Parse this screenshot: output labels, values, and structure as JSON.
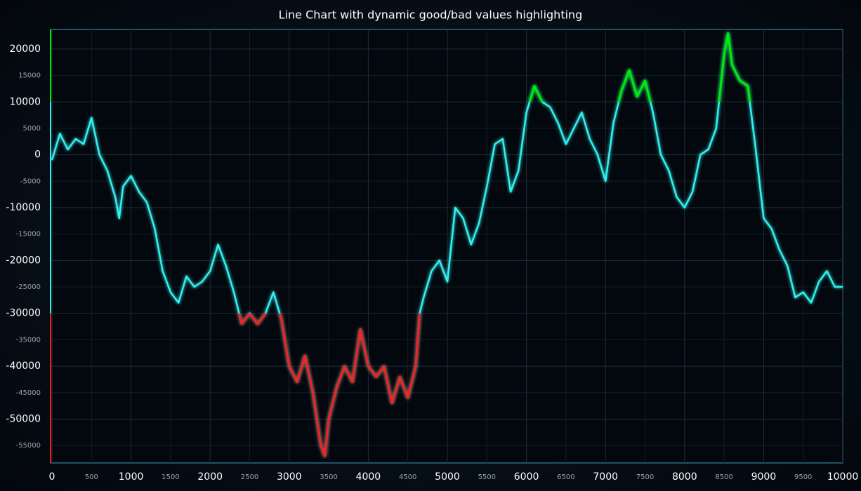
{
  "chart_data": {
    "type": "line",
    "title": "Line Chart with dynamic good/bad values highlighting",
    "x": [
      0,
      100,
      200,
      300,
      400,
      500,
      600,
      700,
      800,
      850,
      900,
      1000,
      1100,
      1200,
      1300,
      1400,
      1500,
      1600,
      1700,
      1800,
      1900,
      2000,
      2100,
      2200,
      2300,
      2400,
      2500,
      2600,
      2700,
      2800,
      2900,
      3000,
      3100,
      3200,
      3300,
      3400,
      3450,
      3500,
      3600,
      3700,
      3800,
      3900,
      4000,
      4100,
      4200,
      4300,
      4400,
      4500,
      4600,
      4650,
      4700,
      4800,
      4900,
      5000,
      5100,
      5200,
      5300,
      5400,
      5500,
      5600,
      5700,
      5800,
      5900,
      6000,
      6100,
      6200,
      6300,
      6400,
      6500,
      6600,
      6700,
      6800,
      6900,
      7000,
      7100,
      7200,
      7300,
      7400,
      7500,
      7600,
      7700,
      7800,
      7900,
      8000,
      8100,
      8200,
      8300,
      8400,
      8500,
      8550,
      8600,
      8700,
      8800,
      8900,
      9000,
      9100,
      9200,
      9300,
      9400,
      9500,
      9600,
      9700,
      9800,
      9900,
      10000
    ],
    "values": [
      -1000,
      4000,
      1000,
      3000,
      2000,
      7000,
      0,
      -3000,
      -8000,
      -12000,
      -6000,
      -4000,
      -7000,
      -9000,
      -14000,
      -22000,
      -26000,
      -28000,
      -23000,
      -25000,
      -24000,
      -22000,
      -17000,
      -21000,
      -26000,
      -32000,
      -30000,
      -32000,
      -30000,
      -26000,
      -31000,
      -40000,
      -43000,
      -38000,
      -45000,
      -55000,
      -57000,
      -50000,
      -44000,
      -40000,
      -43000,
      -33000,
      -40000,
      -42000,
      -40000,
      -47000,
      -42000,
      -46000,
      -40000,
      -30000,
      -27000,
      -22000,
      -20000,
      -24000,
      -10000,
      -12000,
      -17000,
      -13000,
      -6000,
      2000,
      3000,
      -7000,
      -3000,
      8000,
      13000,
      10000,
      9000,
      6000,
      2000,
      5000,
      8000,
      3000,
      0,
      -5000,
      6000,
      12000,
      16000,
      11000,
      14000,
      8000,
      0,
      -3000,
      -8000,
      -10000,
      -7000,
      0,
      1000,
      5000,
      19000,
      23000,
      17000,
      14000,
      13000,
      1000,
      -12000,
      -14000,
      -18000,
      -21000,
      -27000,
      -26000,
      -28000,
      -24000,
      -22000,
      -25000,
      -25000
    ],
    "color": "#33f0f0",
    "high_threshold": {
      "value": 10000,
      "color": "#00ee00"
    },
    "low_threshold": {
      "value": -30000,
      "color": "#ff1a1a"
    },
    "xlim": [
      0,
      10000
    ],
    "ylim": [
      -58300,
      23700
    ],
    "xticks": [
      0,
      500,
      1000,
      1500,
      2000,
      2500,
      3000,
      3500,
      4000,
      4500,
      5000,
      5500,
      6000,
      6500,
      7000,
      7500,
      8000,
      8500,
      9000,
      9500,
      10000
    ],
    "yticks": [
      -55000,
      -50000,
      -45000,
      -40000,
      -35000,
      -30000,
      -25000,
      -20000,
      -15000,
      -10000,
      -5000,
      0,
      5000,
      10000,
      15000,
      20000
    ],
    "grid": true
  }
}
